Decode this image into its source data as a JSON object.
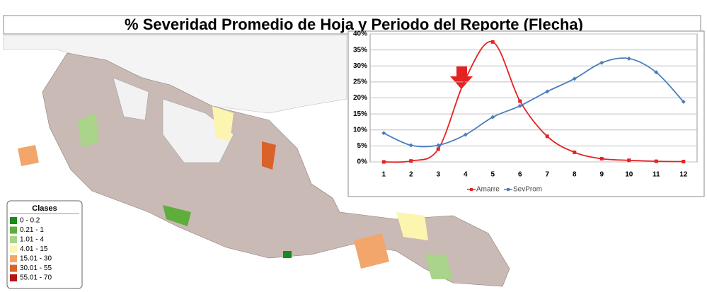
{
  "title": "% Severidad Promedio de Hoja y Periodo del Reporte (Flecha)",
  "map_legend": {
    "title": "Clases",
    "classes": [
      {
        "label": "0 - 0.2",
        "color": "#1a8a1a"
      },
      {
        "label": "0.21 - 1",
        "color": "#5fae3d"
      },
      {
        "label": "1.01 - 4",
        "color": "#a9d48a"
      },
      {
        "label": "4.01 - 15",
        "color": "#fbf5b0"
      },
      {
        "label": "15.01 - 30",
        "color": "#f2a66b"
      },
      {
        "label": "30.01 - 55",
        "color": "#d9622b"
      },
      {
        "label": "55.01 - 70",
        "color": "#b41414"
      }
    ]
  },
  "chart_data": {
    "type": "line",
    "categories": [
      "1",
      "2",
      "3",
      "4",
      "5",
      "6",
      "7",
      "8",
      "9",
      "10",
      "11",
      "12"
    ],
    "series": [
      {
        "name": "Amarre",
        "color": "#e52222",
        "marker": "square",
        "values": [
          0,
          0.3,
          4,
          26,
          37.5,
          19,
          8,
          3,
          1,
          0.5,
          0.2,
          0.1
        ]
      },
      {
        "name": "SevProm",
        "color": "#4a7ebb",
        "marker": "diamond",
        "values": [
          9,
          5.2,
          5.2,
          8.5,
          14,
          17.5,
          22,
          26,
          31,
          32.3,
          28,
          18.8
        ]
      }
    ],
    "ylim": [
      0,
      40
    ],
    "yticks": [
      {
        "value": 0,
        "label": "0%"
      },
      {
        "value": 5,
        "label": "5%"
      },
      {
        "value": 10,
        "label": "10%"
      },
      {
        "value": 15,
        "label": "15%"
      },
      {
        "value": 20,
        "label": "20%"
      },
      {
        "value": 25,
        "label": "25%"
      },
      {
        "value": 30,
        "label": "30%"
      },
      {
        "value": 35,
        "label": "35%"
      },
      {
        "value": 40,
        "label": "40%"
      }
    ],
    "grid": true,
    "legend": "bottom"
  }
}
